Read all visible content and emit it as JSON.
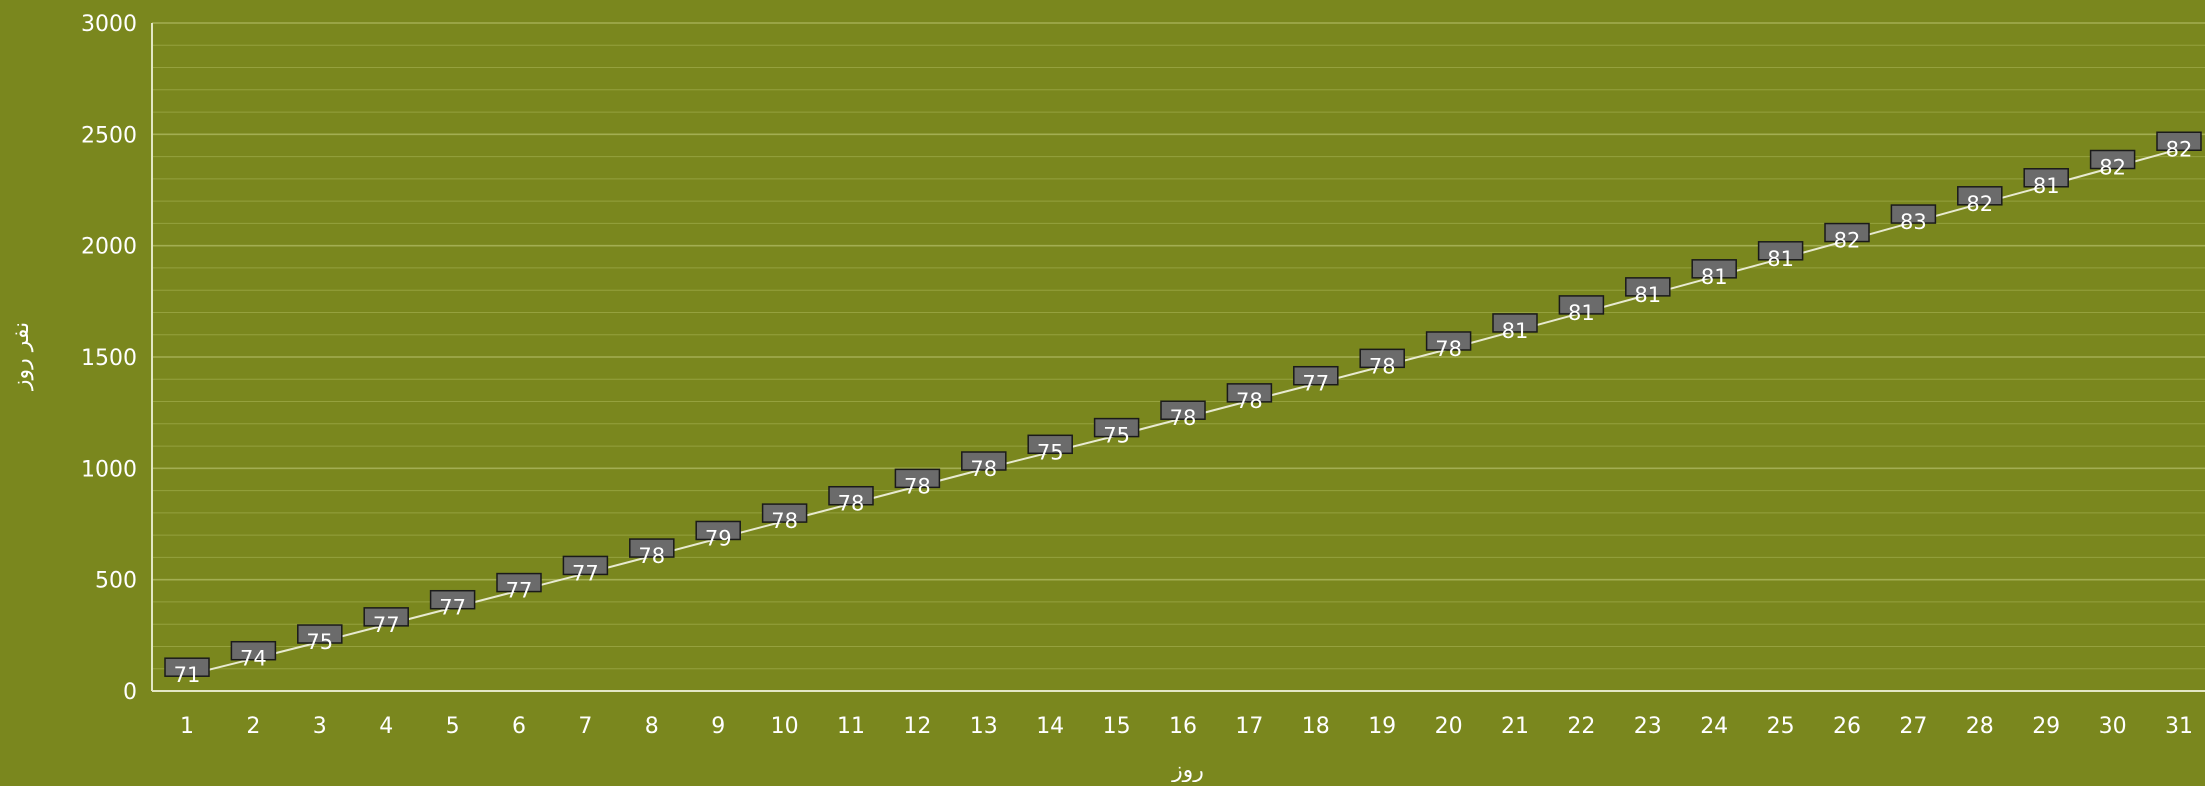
{
  "chart_data": {
    "type": "line",
    "title": "",
    "xlabel": "روز",
    "ylabel": "نفر روز",
    "x": [
      1,
      2,
      3,
      4,
      5,
      6,
      7,
      8,
      9,
      10,
      11,
      12,
      13,
      14,
      15,
      16,
      17,
      18,
      19,
      20,
      21,
      22,
      23,
      24,
      25,
      26,
      27,
      28,
      29,
      30,
      31
    ],
    "series": [
      {
        "values": [
          71,
          145,
          220,
          297,
          374,
          451,
          528,
          606,
          685,
          763,
          841,
          919,
          997,
          1072,
          1147,
          1225,
          1303,
          1380,
          1458,
          1536,
          1617,
          1698,
          1779,
          1860,
          1941,
          2023,
          2106,
          2188,
          2269,
          2351,
          2433
        ],
        "data_labels": [
          "71",
          "74",
          "75",
          "77",
          "77",
          "77",
          "77",
          "78",
          "79",
          "78",
          "78",
          "78",
          "78",
          "75",
          "75",
          "78",
          "78",
          "77",
          "78",
          "78",
          "81",
          "81",
          "81",
          "81",
          "81",
          "82",
          "83",
          "82",
          "81",
          "82",
          "82"
        ]
      }
    ],
    "ylim": [
      0,
      3000
    ],
    "yticks": [
      "0",
      "500",
      "1000",
      "1500",
      "2000",
      "2500",
      "3000"
    ],
    "xticks": [
      "1",
      "2",
      "3",
      "4",
      "5",
      "6",
      "7",
      "8",
      "9",
      "10",
      "11",
      "12",
      "13",
      "14",
      "15",
      "16",
      "17",
      "18",
      "19",
      "20",
      "21",
      "22",
      "23",
      "24",
      "25",
      "26",
      "27",
      "28",
      "29",
      "30",
      "31"
    ],
    "grid": true,
    "legend": "none",
    "colors": {
      "background": "#7a871e",
      "grid": "#95a13e",
      "axis": "#e3e7c4",
      "line": "#e8ead0",
      "text": "#ffffff",
      "label_box": "#6b6b6b",
      "label_border": "#1a1a1a"
    }
  }
}
